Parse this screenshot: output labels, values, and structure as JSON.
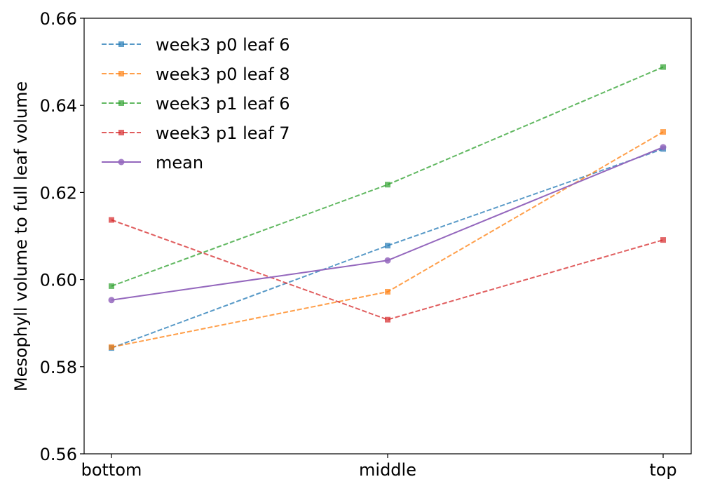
{
  "chart_data": {
    "type": "line",
    "title": "",
    "xlabel": "",
    "ylabel": "Mesophyll volume to full leaf volume",
    "categories": [
      "bottom",
      "middle",
      "top"
    ],
    "ylim": [
      0.56,
      0.66
    ],
    "yticks": [
      "0.56",
      "0.58",
      "0.60",
      "0.62",
      "0.64",
      "0.66"
    ],
    "grid": false,
    "legend_position": "top-left",
    "series": [
      {
        "name": "week3 p0 leaf 6",
        "values": [
          0.5843,
          0.6078,
          0.63
        ],
        "color": "#1f77b4",
        "style": "dashed",
        "marker": "square"
      },
      {
        "name": "week3 p0 leaf 8",
        "values": [
          0.5845,
          0.5972,
          0.6339
        ],
        "color": "#ff7f0e",
        "style": "dashed",
        "marker": "square"
      },
      {
        "name": "week3 p1 leaf 6",
        "values": [
          0.5985,
          0.6218,
          0.6488
        ],
        "color": "#2ca02c",
        "style": "dashed",
        "marker": "square"
      },
      {
        "name": "week3 p1 leaf 7",
        "values": [
          0.6137,
          0.5908,
          0.6091
        ],
        "color": "#d62728",
        "style": "dashed",
        "marker": "square"
      },
      {
        "name": "mean",
        "values": [
          0.5953,
          0.6044,
          0.6304
        ],
        "color": "#9467bd",
        "style": "solid",
        "marker": "circle"
      }
    ]
  }
}
